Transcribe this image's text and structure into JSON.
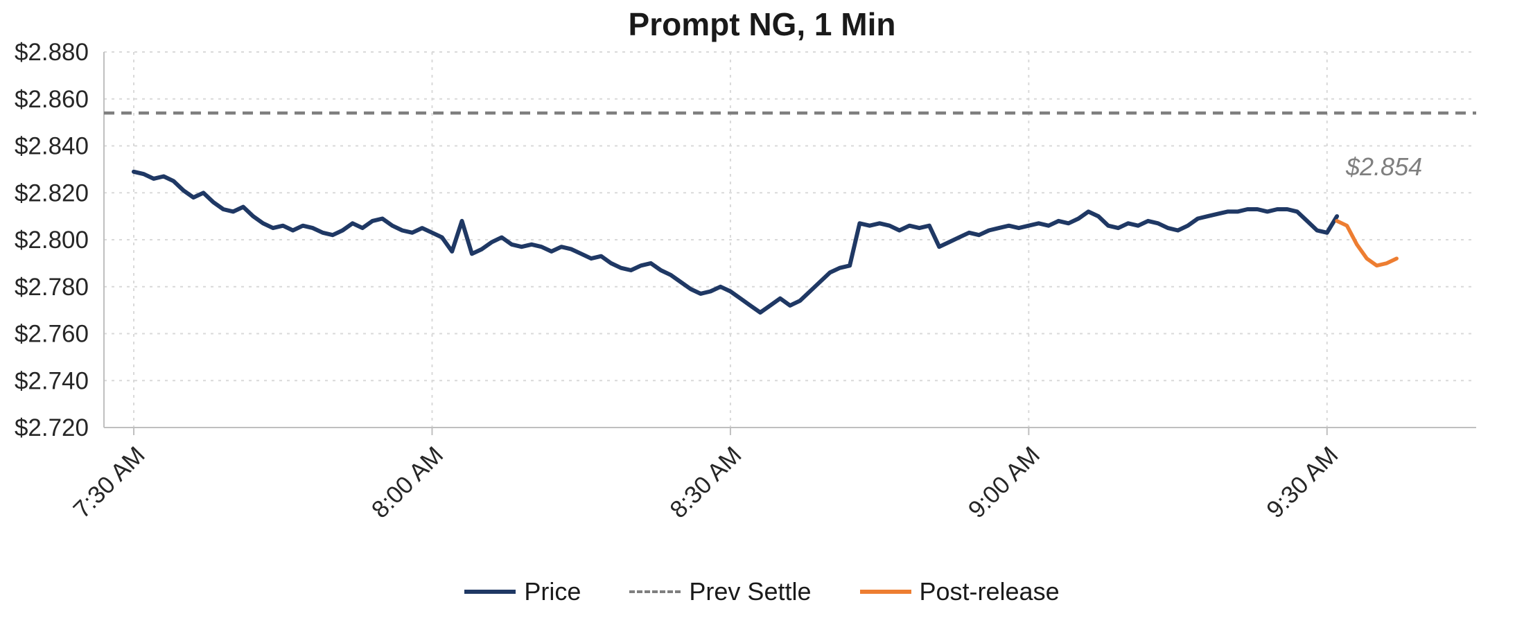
{
  "chart": {
    "title": "Prompt NG, 1 Min",
    "annotation": "$2.854",
    "colors": {
      "price": "#1f3864",
      "prev_settle": "#7f7f7f",
      "post_release": "#ed7d31",
      "grid": "#d9d9d9",
      "axis": "#bfbfbf",
      "label": "#262626",
      "annotation": "#7f7f7f"
    },
    "legend": [
      {
        "label": "Price",
        "color": "#1f3864",
        "style": "solid"
      },
      {
        "label": "Prev Settle",
        "color": "#7f7f7f",
        "style": "dashed"
      },
      {
        "label": "Post-release",
        "color": "#ed7d31",
        "style": "solid"
      }
    ]
  },
  "chart_data": {
    "type": "line",
    "title": "Prompt NG, 1 Min",
    "xlabel": "",
    "ylabel": "",
    "ylim": [
      2.72,
      2.88
    ],
    "ytick_step": 0.02,
    "ytick_format": "$x.xxx",
    "x_domain_minutes": [
      -3,
      135
    ],
    "x_start_time": "7:30 AM",
    "xticks": [
      {
        "minute": 0,
        "label": "7:30 AM"
      },
      {
        "minute": 30,
        "label": "8:00 AM"
      },
      {
        "minute": 60,
        "label": "8:30 AM"
      },
      {
        "minute": 90,
        "label": "9:00 AM"
      },
      {
        "minute": 120,
        "label": "9:30 AM"
      }
    ],
    "grid": true,
    "legend_position": "bottom",
    "prev_settle": 2.854,
    "series": [
      {
        "name": "Price",
        "color": "#1f3864",
        "dash": false,
        "width": 6,
        "start_minute": 0,
        "step_minutes": 1,
        "values": [
          2.829,
          2.828,
          2.826,
          2.827,
          2.825,
          2.821,
          2.818,
          2.82,
          2.816,
          2.813,
          2.812,
          2.814,
          2.81,
          2.807,
          2.805,
          2.806,
          2.804,
          2.806,
          2.805,
          2.803,
          2.802,
          2.804,
          2.807,
          2.805,
          2.808,
          2.809,
          2.806,
          2.804,
          2.803,
          2.805,
          2.803,
          2.801,
          2.795,
          2.808,
          2.794,
          2.796,
          2.799,
          2.801,
          2.798,
          2.797,
          2.798,
          2.797,
          2.795,
          2.797,
          2.796,
          2.794,
          2.792,
          2.793,
          2.79,
          2.788,
          2.787,
          2.789,
          2.79,
          2.787,
          2.785,
          2.782,
          2.779,
          2.777,
          2.778,
          2.78,
          2.778,
          2.775,
          2.772,
          2.769,
          2.772,
          2.775,
          2.772,
          2.774,
          2.778,
          2.782,
          2.786,
          2.788,
          2.789,
          2.807,
          2.806,
          2.807,
          2.806,
          2.804,
          2.806,
          2.805,
          2.806,
          2.797,
          2.799,
          2.801,
          2.803,
          2.802,
          2.804,
          2.805,
          2.806,
          2.805,
          2.806,
          2.807,
          2.806,
          2.808,
          2.807,
          2.809,
          2.812,
          2.81,
          2.806,
          2.805,
          2.807,
          2.806,
          2.808,
          2.807,
          2.805,
          2.804,
          2.806,
          2.809,
          2.81,
          2.811,
          2.812,
          2.812,
          2.813,
          2.813,
          2.812,
          2.813,
          2.813,
          2.812,
          2.808,
          2.804,
          2.803,
          2.81
        ]
      },
      {
        "name": "Post-release",
        "color": "#ed7d31",
        "dash": false,
        "width": 5.5,
        "start_minute": 121,
        "step_minutes": 1,
        "values": [
          2.808,
          2.806,
          2.798,
          2.792,
          2.789,
          2.79,
          2.792
        ]
      }
    ]
  }
}
